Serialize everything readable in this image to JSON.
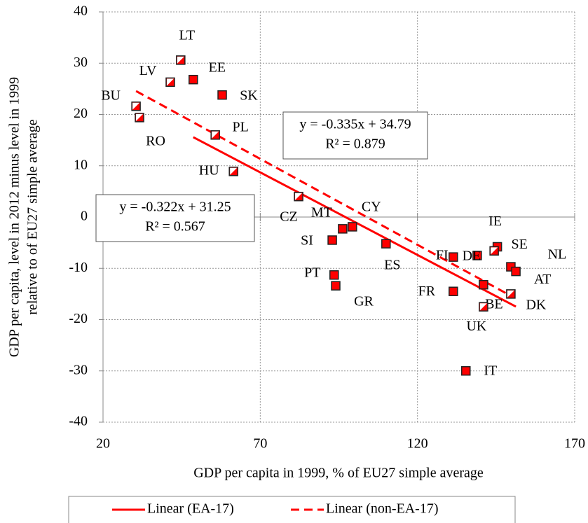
{
  "chart_data": {
    "type": "scatter",
    "x_label": "GDP per capita in 1999, % of EU27 simple average",
    "y_label": [
      "GDP per capita, level in 2012 minus level in 1999",
      "relative to of EU27 simple average"
    ],
    "xlim": [
      20,
      170
    ],
    "xticks": [
      20,
      70,
      120,
      170
    ],
    "ylim": [
      -40,
      40
    ],
    "yticks": [
      -40,
      -30,
      -20,
      -10,
      0,
      10,
      20,
      30,
      40
    ],
    "grid": true,
    "series": [
      {
        "marker": "filled",
        "color": "#ff0000",
        "labels": [
          "EE",
          "SK",
          "MT",
          "CY",
          "SI",
          "ES",
          "PT",
          "GR",
          "FI",
          "DE",
          "IE",
          "NL",
          "AT",
          "FR",
          "BE",
          "IT"
        ],
        "x": [
          48.7,
          57.9,
          96.2,
          99.3,
          92.9,
          110,
          93.5,
          94,
          131.4,
          139,
          145.4,
          149.7,
          151.3,
          131.4,
          141,
          135.4
        ],
        "y": [
          26.8,
          23.8,
          -2.3,
          -1.9,
          -4.5,
          -5.2,
          -11.3,
          -13.4,
          -7.8,
          -7.5,
          -5.8,
          -9.7,
          -10.6,
          -14.5,
          -13.2,
          -30
        ]
      },
      {
        "marker": "half",
        "color": "#ff0000",
        "labels": [
          "LT",
          "LV",
          "BU",
          "RO",
          "PL",
          "HU",
          "CZ",
          "UK",
          "SE",
          "DK"
        ],
        "x": [
          44.7,
          41.4,
          30.5,
          31.6,
          55.7,
          61.5,
          82.2,
          141,
          144.4,
          149.7
        ],
        "y": [
          30.6,
          26.3,
          21.6,
          19.4,
          16,
          8.9,
          4,
          -17.5,
          -6.6,
          -15
        ]
      }
    ],
    "trendlines": [
      {
        "name": "Linear (EA-17)",
        "series": 0,
        "style": "solid",
        "color": "#ff0000",
        "slope": -0.322,
        "intercept": 31.25,
        "equation": "y = -0.322x + 31.25",
        "r2": "R² = 0.567"
      },
      {
        "name": "Linear (non-EA-17)",
        "series": 1,
        "style": "dashed",
        "color": "#ff0000",
        "slope": -0.335,
        "intercept": 34.79,
        "equation": "y = -0.335x + 34.79",
        "r2": "R² = 0.879"
      }
    ]
  }
}
